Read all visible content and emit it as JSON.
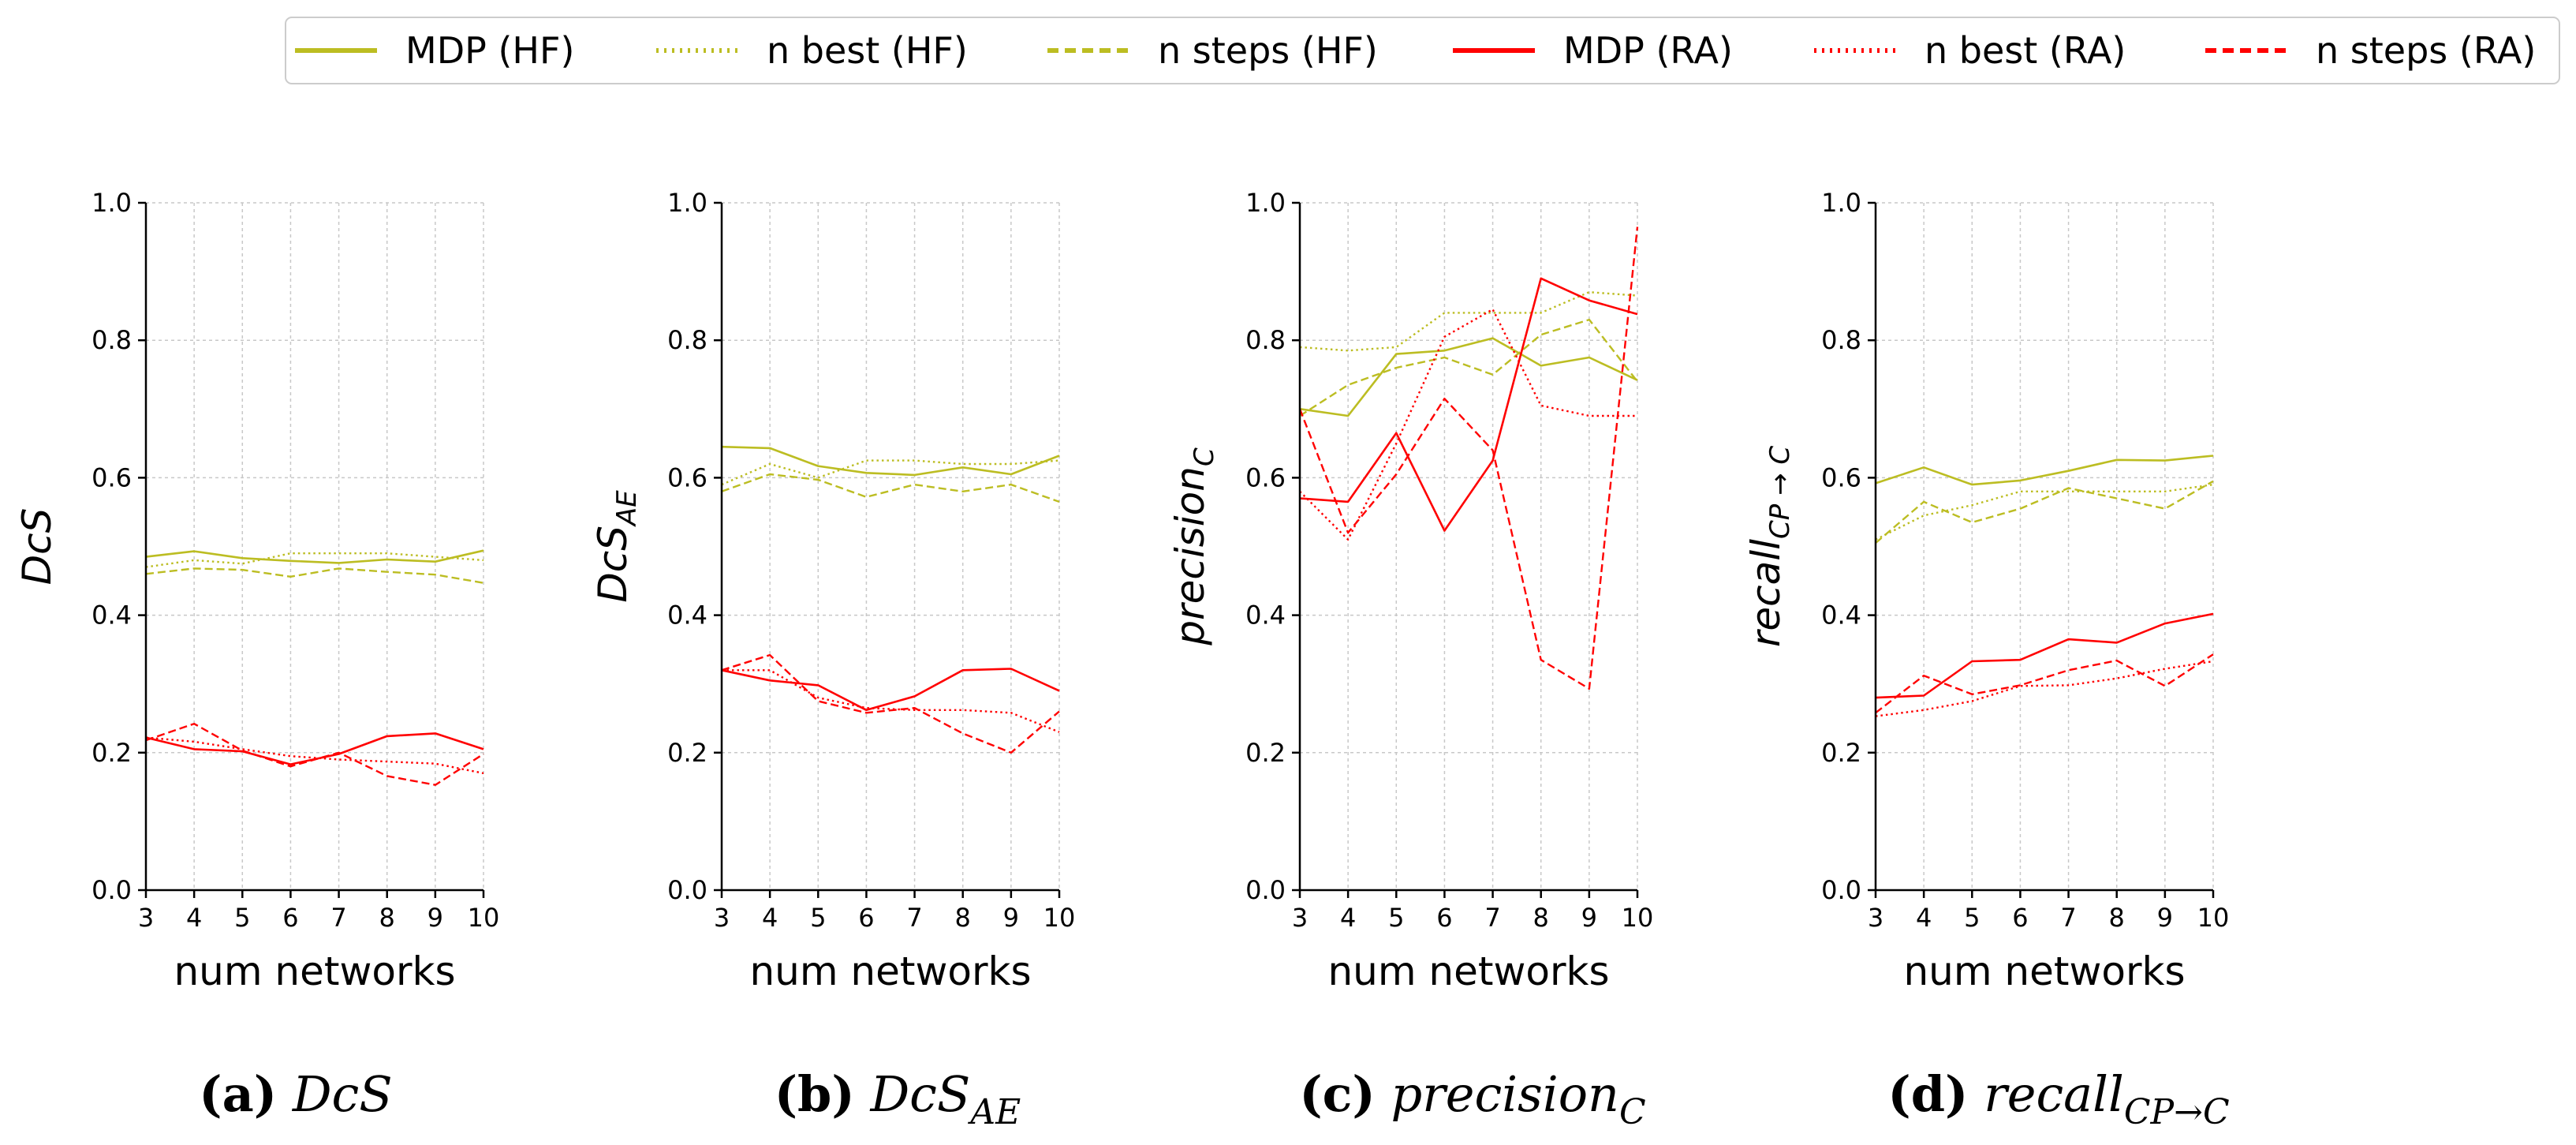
{
  "colors": {
    "hf": "#bcbd22",
    "ra": "#ff0000"
  },
  "legend": [
    {
      "label": "MDP (HF)",
      "group": "hf",
      "style": "solid"
    },
    {
      "label": "n best (HF)",
      "group": "hf",
      "style": "dotted"
    },
    {
      "label": "n steps (HF)",
      "group": "hf",
      "style": "dashed"
    },
    {
      "label": "MDP (RA)",
      "group": "ra",
      "style": "solid"
    },
    {
      "label": "n best (RA)",
      "group": "ra",
      "style": "dotted"
    },
    {
      "label": "n steps (RA)",
      "group": "ra",
      "style": "dashed"
    }
  ],
  "chart_data": [
    {
      "type": "line",
      "ylabel": {
        "base": "DcS",
        "sub": ""
      },
      "xlabel": "num networks",
      "x": [
        3,
        4,
        5,
        6,
        7,
        8,
        9,
        10
      ],
      "xlim": [
        3,
        10
      ],
      "ylim": [
        0.0,
        1.0
      ],
      "yticks": [
        "0.0",
        "0.2",
        "0.4",
        "0.6",
        "0.8",
        "1.0"
      ],
      "caption": {
        "letter": "(a)",
        "base": "DcS",
        "sub": ""
      },
      "series": [
        {
          "name": "MDP (HF)",
          "values": [
            0.485,
            0.493,
            0.483,
            0.479,
            0.476,
            0.481,
            0.478,
            0.494
          ]
        },
        {
          "name": "n best (HF)",
          "values": [
            0.47,
            0.48,
            0.475,
            0.49,
            0.49,
            0.49,
            0.485,
            0.48
          ]
        },
        {
          "name": "n steps (HF)",
          "values": [
            0.46,
            0.468,
            0.466,
            0.456,
            0.468,
            0.463,
            0.459,
            0.447
          ]
        },
        {
          "name": "MDP (RA)",
          "values": [
            0.222,
            0.205,
            0.202,
            0.183,
            0.198,
            0.224,
            0.228,
            0.205
          ]
        },
        {
          "name": "n best (RA)",
          "values": [
            0.222,
            0.216,
            0.205,
            0.195,
            0.19,
            0.187,
            0.184,
            0.17
          ]
        },
        {
          "name": "n steps (RA)",
          "values": [
            0.218,
            0.242,
            0.203,
            0.18,
            0.2,
            0.166,
            0.153,
            0.198
          ]
        }
      ]
    },
    {
      "type": "line",
      "ylabel": {
        "base": "DcS",
        "sub": "AE"
      },
      "xlabel": "num networks",
      "x": [
        3,
        4,
        5,
        6,
        7,
        8,
        9,
        10
      ],
      "xlim": [
        3,
        10
      ],
      "ylim": [
        0.0,
        1.0
      ],
      "yticks": [
        "0.0",
        "0.2",
        "0.4",
        "0.6",
        "0.8",
        "1.0"
      ],
      "caption": {
        "letter": "(b)",
        "base": "DcS",
        "sub": "AE"
      },
      "series": [
        {
          "name": "MDP (HF)",
          "values": [
            0.645,
            0.643,
            0.617,
            0.607,
            0.604,
            0.615,
            0.605,
            0.632
          ]
        },
        {
          "name": "n best (HF)",
          "values": [
            0.59,
            0.62,
            0.6,
            0.625,
            0.625,
            0.62,
            0.62,
            0.625
          ]
        },
        {
          "name": "n steps (HF)",
          "values": [
            0.58,
            0.605,
            0.597,
            0.572,
            0.59,
            0.58,
            0.59,
            0.565
          ]
        },
        {
          "name": "MDP (RA)",
          "values": [
            0.32,
            0.305,
            0.298,
            0.262,
            0.282,
            0.32,
            0.322,
            0.29
          ]
        },
        {
          "name": "n best (RA)",
          "values": [
            0.32,
            0.32,
            0.28,
            0.265,
            0.262,
            0.262,
            0.258,
            0.23
          ]
        },
        {
          "name": "n steps (RA)",
          "values": [
            0.32,
            0.342,
            0.275,
            0.258,
            0.265,
            0.228,
            0.2,
            0.26
          ]
        }
      ]
    },
    {
      "type": "line",
      "ylabel": {
        "base": "precision",
        "sub": "C"
      },
      "xlabel": "num networks",
      "x": [
        3,
        4,
        5,
        6,
        7,
        8,
        9,
        10
      ],
      "xlim": [
        3,
        10
      ],
      "ylim": [
        0.0,
        1.0
      ],
      "yticks": [
        "0.0",
        "0.2",
        "0.4",
        "0.6",
        "0.8",
        "1.0"
      ],
      "caption": {
        "letter": "(c)",
        "base": "precision",
        "sub": "C"
      },
      "series": [
        {
          "name": "MDP (HF)",
          "values": [
            0.7,
            0.69,
            0.78,
            0.785,
            0.803,
            0.763,
            0.775,
            0.742
          ]
        },
        {
          "name": "n best (HF)",
          "values": [
            0.79,
            0.785,
            0.79,
            0.84,
            0.84,
            0.84,
            0.87,
            0.865
          ]
        },
        {
          "name": "n steps (HF)",
          "values": [
            0.69,
            0.735,
            0.76,
            0.775,
            0.75,
            0.808,
            0.83,
            0.74
          ]
        },
        {
          "name": "MDP (RA)",
          "values": [
            0.57,
            0.565,
            0.665,
            0.523,
            0.625,
            0.89,
            0.858,
            0.838
          ]
        },
        {
          "name": "n best (RA)",
          "values": [
            0.58,
            0.51,
            0.65,
            0.805,
            0.845,
            0.705,
            0.69,
            0.69
          ]
        },
        {
          "name": "n steps (RA)",
          "values": [
            0.7,
            0.52,
            0.605,
            0.715,
            0.64,
            0.335,
            0.293,
            0.965
          ]
        }
      ]
    },
    {
      "type": "line",
      "ylabel": {
        "base": "recall",
        "sub": "CP → C"
      },
      "xlabel": "num networks",
      "x": [
        3,
        4,
        5,
        6,
        7,
        8,
        9,
        10
      ],
      "xlim": [
        3,
        10
      ],
      "ylim": [
        0.0,
        1.0
      ],
      "yticks": [
        "0.0",
        "0.2",
        "0.4",
        "0.6",
        "0.8",
        "1.0"
      ],
      "caption": {
        "letter": "(d)",
        "base": "recall",
        "sub": "CP→C"
      },
      "series": [
        {
          "name": "MDP (HF)",
          "values": [
            0.592,
            0.615,
            0.59,
            0.596,
            0.61,
            0.626,
            0.625,
            0.632
          ]
        },
        {
          "name": "n best (HF)",
          "values": [
            0.51,
            0.545,
            0.56,
            0.58,
            0.58,
            0.58,
            0.58,
            0.59
          ]
        },
        {
          "name": "n steps (HF)",
          "values": [
            0.505,
            0.565,
            0.535,
            0.555,
            0.585,
            0.57,
            0.555,
            0.595
          ]
        },
        {
          "name": "MDP (RA)",
          "values": [
            0.28,
            0.283,
            0.333,
            0.335,
            0.365,
            0.36,
            0.388,
            0.402
          ]
        },
        {
          "name": "n best (RA)",
          "values": [
            0.253,
            0.262,
            0.275,
            0.297,
            0.298,
            0.308,
            0.322,
            0.333
          ]
        },
        {
          "name": "n steps (RA)",
          "values": [
            0.258,
            0.312,
            0.285,
            0.298,
            0.32,
            0.334,
            0.297,
            0.343
          ]
        }
      ]
    }
  ]
}
